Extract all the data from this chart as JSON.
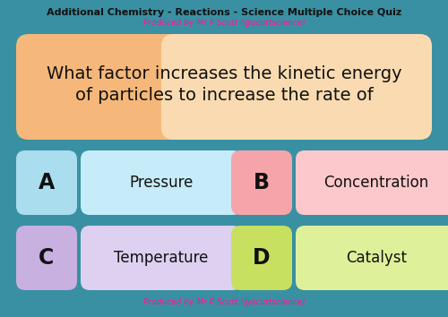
{
  "bg_color": "#3990a3",
  "title_text": "Additional Chemistry - Reactions - Science Multiple Choice Quiz",
  "subtitle_text": "Produced by Mr P Scutt (@scuttscience)",
  "subtitle_color": "#ff1493",
  "footer_text": "Produced by Mr P Scutt (@scuttscience)",
  "footer_color": "#ff1493",
  "question_line1": "What factor increases the kinetic energy",
  "question_line2": "of particles to increase the rate of",
  "question_box_color": "#f5b87a",
  "question_box_color_right": "#fde7c4",
  "options": [
    {
      "letter": "A",
      "text": "Pressure",
      "letter_box_color": "#aaddee",
      "text_box_color": "#c5ecf8"
    },
    {
      "letter": "B",
      "text": "Concentration",
      "letter_box_color": "#f5a5aa",
      "text_box_color": "#fcc8cc"
    },
    {
      "letter": "C",
      "text": "Temperature",
      "letter_box_color": "#c8b0e0",
      "text_box_color": "#ddd0f0"
    },
    {
      "letter": "D",
      "text": "Catalyst",
      "letter_box_color": "#c8e060",
      "text_box_color": "#dff09a"
    }
  ],
  "title_fontsize": 8,
  "subtitle_fontsize": 6.5,
  "question_fontsize": 14,
  "option_letter_fontsize": 17,
  "option_text_fontsize": 12,
  "footer_fontsize": 6.5
}
